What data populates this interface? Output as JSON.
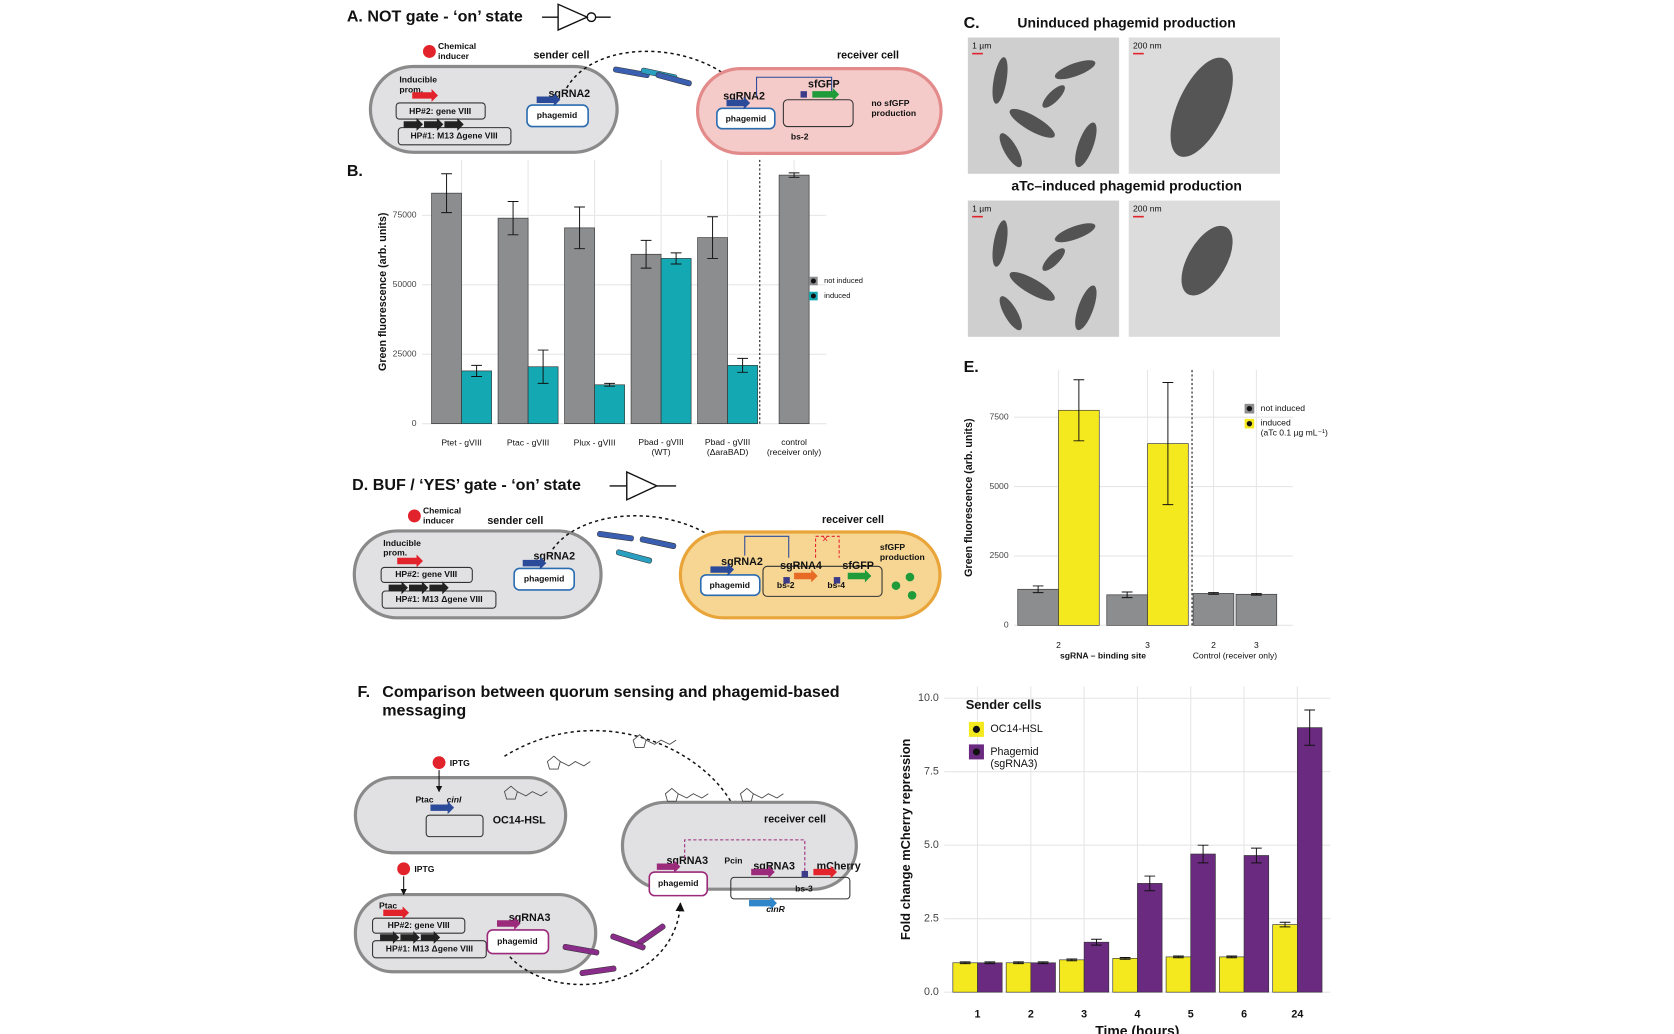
{
  "panel_a": {
    "title": "A. NOT gate - ‘on’ state",
    "sender": {
      "inducer": "Chemical\ninducer",
      "label": "sender cell",
      "promoter": "Inducible\nprom.",
      "hp2": "HP#2: gene VIII",
      "hp1": "HP#1: M13 Δgene VIII",
      "sgrna": "sgRNA2",
      "phagemid": "phagemid"
    },
    "receiver": {
      "label": "receiver cell",
      "sgrna": "sgRNA2",
      "phagemid": "phagemid",
      "reporter": "sfGFP",
      "binding_site": "bs-2",
      "output": "no sfGFP\nproduction"
    }
  },
  "panel_labels": {
    "b": "B.",
    "c": "C.",
    "e": "E."
  },
  "panel_c": {
    "top_title": "Uninduced phagemid production",
    "bottom_title": "aTc–induced phagemid production",
    "scale_labels": [
      "1 µm",
      "200 nm",
      "1 µm",
      "200 nm"
    ]
  },
  "panel_d": {
    "title": "D. BUF / ‘YES’ gate - ‘on’ state",
    "sender": {
      "inducer": "Chemical\ninducer",
      "label": "sender cell",
      "promoter": "Inducible\nprom.",
      "hp2": "HP#2: gene VIII",
      "hp1": "HP#1: M13 Δgene VIII",
      "sgrna": "sgRNA2",
      "phagemid": "phagemid"
    },
    "receiver": {
      "label": "receiver cell",
      "sgrna": "sgRNA2",
      "phagemid": "phagemid",
      "sgrna4": "sgRNA4",
      "reporter": "sfGFP",
      "bs2": "bs-2",
      "bs4": "bs-4",
      "output": "sfGFP\nproduction"
    }
  },
  "panel_f": {
    "label": "F.",
    "title": "Comparison between quorum sensing and phagemid-based\nmessaging",
    "qs_sender": {
      "inducer": "IPTG",
      "promoter": "Ptac",
      "gene": "cinI",
      "signal": "OC14-HSL"
    },
    "phage_sender": {
      "inducer": "IPTG",
      "promoter": "Ptac",
      "hp2": "HP#2: gene VIII",
      "hp1": "HP#1: M13 Δgene VIII",
      "sgrna": "sgRNA3",
      "phagemid": "phagemid"
    },
    "receiver": {
      "label": "receiver cell",
      "sgrna": "sgRNA3",
      "phagemid": "phagemid",
      "promoter": "Pcin",
      "sgrna_gene": "sgRNA3",
      "reporter": "mCherry",
      "binding_site": "bs-3",
      "regulator": "cinR"
    }
  },
  "chart_data": [
    {
      "type": "bar",
      "ylabel": "Green fluorescence (arb. units)",
      "categories": [
        "Ptet - gVIII",
        "Ptac - gVIII",
        "Plux - gVIII",
        "Pbad - gVIII\n(WT)",
        "Pbad - gVIII\n(ΔaraBAD)",
        "control\n(receiver only)"
      ],
      "series": [
        {
          "name": "not induced",
          "color": "#8c8d8f",
          "values": [
            83000,
            74000,
            70500,
            61000,
            67000,
            89500
          ],
          "errors": [
            7000,
            6000,
            7500,
            5000,
            7500,
            800
          ]
        },
        {
          "name": "induced",
          "color": "#14a8b2",
          "values": [
            19000,
            20500,
            14000,
            59500,
            21000,
            null
          ],
          "errors": [
            2000,
            6000,
            500,
            2000,
            2500,
            null
          ]
        }
      ],
      "ylim": [
        0,
        95000
      ],
      "yticks": [
        0,
        25000,
        50000,
        75000
      ],
      "grid": true,
      "legend": "right"
    },
    {
      "type": "bar",
      "ylabel": "Green fluorescence (arb. units)",
      "categories": [
        "2",
        "3",
        "2",
        "3"
      ],
      "category_groups": [
        "sgRNA – binding site",
        "Control (receiver only)"
      ],
      "series": [
        {
          "name": "not induced",
          "color": "#8c8d8f",
          "values": [
            1300,
            1100,
            1150,
            1120
          ],
          "errors": [
            120,
            100,
            30,
            30
          ]
        },
        {
          "name": "induced\n(aTc 0.1 µg mL⁻¹)",
          "color": "#f4e81e",
          "values": [
            7750,
            6550,
            null,
            null
          ],
          "errors": [
            1100,
            2200,
            null,
            null
          ]
        }
      ],
      "ylim": [
        0,
        9200
      ],
      "yticks": [
        0,
        2500,
        5000,
        7500
      ],
      "grid": true,
      "legend": "right"
    },
    {
      "type": "bar",
      "xlabel": "Time (hours)",
      "ylabel": "Fold change mCherry repression",
      "legend_title": "Sender cells",
      "categories": [
        "1",
        "2",
        "3",
        "4",
        "5",
        "6",
        "24"
      ],
      "series": [
        {
          "name": "OC14-HSL",
          "color": "#f4e81e",
          "values": [
            1.0,
            1.0,
            1.1,
            1.15,
            1.2,
            1.2,
            2.3
          ],
          "errors": [
            0.03,
            0.03,
            0.03,
            0.03,
            0.03,
            0.03,
            0.08
          ]
        },
        {
          "name": "Phagemid\n(sgRNA3)",
          "color": "#6a2a80",
          "values": [
            1.0,
            1.0,
            1.7,
            3.7,
            4.7,
            4.65,
            9.0
          ],
          "errors": [
            0.03,
            0.03,
            0.1,
            0.25,
            0.3,
            0.25,
            0.6
          ]
        }
      ],
      "ylim": [
        0,
        10.4
      ],
      "yticks": [
        {
          "value": 0,
          "label": "0.0"
        },
        {
          "value": 2.5,
          "label": "2.5"
        },
        {
          "value": 5,
          "label": "5.0"
        },
        {
          "value": 7.5,
          "label": "7.5"
        },
        {
          "value": 10,
          "label": "10.0"
        }
      ],
      "grid": true,
      "legend": "top-left"
    }
  ]
}
